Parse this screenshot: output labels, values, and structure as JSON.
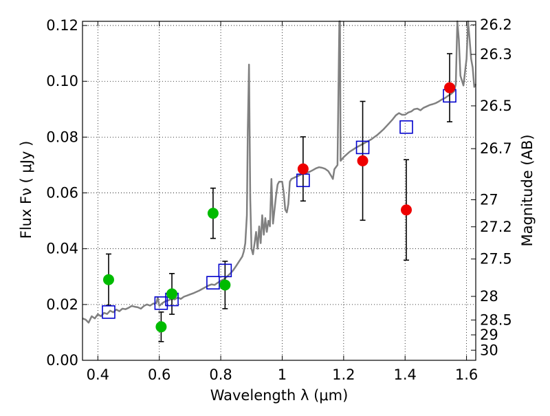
{
  "chart_data": {
    "type": "scatter",
    "xlabel": "Wavelength  λ (μm)",
    "ylabel": "Flux  Fν  ( μJy )",
    "y2label": "Magnitude (AB)",
    "xlim": [
      0.35,
      1.63
    ],
    "ylim": [
      0.0,
      0.1215
    ],
    "grid": true,
    "xticks": [
      {
        "v": 0.4,
        "t": "0.4"
      },
      {
        "v": 0.6,
        "t": "0.6"
      },
      {
        "v": 0.8,
        "t": "0.8"
      },
      {
        "v": 1.0,
        "t": "1"
      },
      {
        "v": 1.2,
        "t": "1.2"
      },
      {
        "v": 1.4,
        "t": "1.4"
      },
      {
        "v": 1.6,
        "t": "1.6"
      }
    ],
    "yticks": [
      {
        "v": 0.0,
        "t": "0.00"
      },
      {
        "v": 0.02,
        "t": "0.02"
      },
      {
        "v": 0.04,
        "t": "0.04"
      },
      {
        "v": 0.06,
        "t": "0.06"
      },
      {
        "v": 0.08,
        "t": "0.08"
      },
      {
        "v": 0.1,
        "t": "0.10"
      },
      {
        "v": 0.12,
        "t": "0.12"
      }
    ],
    "mag_ticks": [
      {
        "v": 26.2,
        "t": "26.2"
      },
      {
        "v": 26.3,
        "t": "26.3"
      },
      {
        "v": 26.5,
        "t": "26.5"
      },
      {
        "v": 26.7,
        "t": "26.7"
      },
      {
        "v": 27,
        "t": "27"
      },
      {
        "v": 27.2,
        "t": "27.2"
      },
      {
        "v": 27.5,
        "t": "27.5"
      },
      {
        "v": 28,
        "t": "28"
      },
      {
        "v": 28.5,
        "t": "28.5"
      },
      {
        "v": 29,
        "t": "29"
      },
      {
        "v": 30,
        "t": "30"
      }
    ],
    "series": [
      {
        "marker": "square",
        "color": "#0000cc",
        "points": [
          {
            "x": 0.435,
            "y": 0.0173
          },
          {
            "x": 0.606,
            "y": 0.0205
          },
          {
            "x": 0.641,
            "y": 0.0218
          },
          {
            "x": 0.775,
            "y": 0.0278
          },
          {
            "x": 0.814,
            "y": 0.0322
          },
          {
            "x": 1.068,
            "y": 0.0645
          },
          {
            "x": 1.262,
            "y": 0.0763
          },
          {
            "x": 1.404,
            "y": 0.0836
          },
          {
            "x": 1.545,
            "y": 0.0948
          }
        ]
      },
      {
        "marker": "circle",
        "color": "#00bb00",
        "points": [
          {
            "x": 0.435,
            "y": 0.0289,
            "err": 0.0092
          },
          {
            "x": 0.606,
            "y": 0.012,
            "err": 0.0053
          },
          {
            "x": 0.641,
            "y": 0.0238,
            "err": 0.0073
          },
          {
            "x": 0.775,
            "y": 0.0527,
            "err": 0.009
          },
          {
            "x": 0.814,
            "y": 0.027,
            "err": 0.0085
          }
        ]
      },
      {
        "marker": "circle",
        "color": "#ee0000",
        "points": [
          {
            "x": 1.068,
            "y": 0.0686,
            "err": 0.0115
          },
          {
            "x": 1.262,
            "y": 0.0715,
            "err": 0.0213
          },
          {
            "x": 1.404,
            "y": 0.0539,
            "err": 0.018
          },
          {
            "x": 1.545,
            "y": 0.0977,
            "err": 0.0122
          }
        ]
      }
    ],
    "model_spectrum": {
      "color": "#808080",
      "points": [
        [
          0.35,
          0.015
        ],
        [
          0.36,
          0.0146
        ],
        [
          0.37,
          0.0135
        ],
        [
          0.38,
          0.0158
        ],
        [
          0.39,
          0.015
        ],
        [
          0.4,
          0.0165
        ],
        [
          0.41,
          0.0158
        ],
        [
          0.42,
          0.017
        ],
        [
          0.43,
          0.0166
        ],
        [
          0.44,
          0.0178
        ],
        [
          0.45,
          0.0172
        ],
        [
          0.46,
          0.0182
        ],
        [
          0.47,
          0.0176
        ],
        [
          0.48,
          0.0185
        ],
        [
          0.49,
          0.0183
        ],
        [
          0.5,
          0.0188
        ],
        [
          0.51,
          0.0195
        ],
        [
          0.52,
          0.0192
        ],
        [
          0.53,
          0.019
        ],
        [
          0.54,
          0.0185
        ],
        [
          0.55,
          0.0195
        ],
        [
          0.56,
          0.02
        ],
        [
          0.57,
          0.0196
        ],
        [
          0.58,
          0.0203
        ],
        [
          0.59,
          0.0205
        ],
        [
          0.595,
          0.0225
        ],
        [
          0.6,
          0.0195
        ],
        [
          0.61,
          0.0205
        ],
        [
          0.62,
          0.0212
        ],
        [
          0.63,
          0.0215
        ],
        [
          0.64,
          0.022
        ],
        [
          0.65,
          0.0218
        ],
        [
          0.66,
          0.0225
        ],
        [
          0.67,
          0.022
        ],
        [
          0.68,
          0.0228
        ],
        [
          0.69,
          0.0232
        ],
        [
          0.7,
          0.0236
        ],
        [
          0.71,
          0.024
        ],
        [
          0.72,
          0.0245
        ],
        [
          0.73,
          0.025
        ],
        [
          0.74,
          0.0256
        ],
        [
          0.75,
          0.0262
        ],
        [
          0.76,
          0.0268
        ],
        [
          0.77,
          0.0272
        ],
        [
          0.78,
          0.027
        ],
        [
          0.79,
          0.0278
        ],
        [
          0.8,
          0.0285
        ],
        [
          0.81,
          0.029
        ],
        [
          0.82,
          0.03
        ],
        [
          0.83,
          0.031
        ],
        [
          0.84,
          0.0322
        ],
        [
          0.85,
          0.0338
        ],
        [
          0.86,
          0.0355
        ],
        [
          0.87,
          0.0372
        ],
        [
          0.875,
          0.039
        ],
        [
          0.88,
          0.042
        ],
        [
          0.885,
          0.052
        ],
        [
          0.888,
          0.082
        ],
        [
          0.892,
          0.106
        ],
        [
          0.896,
          0.058
        ],
        [
          0.9,
          0.04
        ],
        [
          0.905,
          0.038
        ],
        [
          0.91,
          0.042
        ],
        [
          0.915,
          0.046
        ],
        [
          0.92,
          0.04
        ],
        [
          0.925,
          0.048
        ],
        [
          0.93,
          0.042
        ],
        [
          0.935,
          0.052
        ],
        [
          0.94,
          0.045
        ],
        [
          0.945,
          0.051
        ],
        [
          0.95,
          0.046
        ],
        [
          0.955,
          0.05
        ],
        [
          0.96,
          0.048
        ],
        [
          0.965,
          0.065
        ],
        [
          0.97,
          0.049
        ],
        [
          0.975,
          0.054
        ],
        [
          0.98,
          0.059
        ],
        [
          0.985,
          0.063
        ],
        [
          0.99,
          0.064
        ],
        [
          1.0,
          0.064
        ],
        [
          1.005,
          0.06
        ],
        [
          1.01,
          0.054
        ],
        [
          1.015,
          0.053
        ],
        [
          1.02,
          0.056
        ],
        [
          1.025,
          0.064
        ],
        [
          1.03,
          0.065
        ],
        [
          1.04,
          0.0655
        ],
        [
          1.05,
          0.066
        ],
        [
          1.06,
          0.0665
        ],
        [
          1.07,
          0.067
        ],
        [
          1.08,
          0.0672
        ],
        [
          1.09,
          0.0676
        ],
        [
          1.1,
          0.0682
        ],
        [
          1.11,
          0.0688
        ],
        [
          1.12,
          0.0692
        ],
        [
          1.13,
          0.069
        ],
        [
          1.14,
          0.0686
        ],
        [
          1.15,
          0.0678
        ],
        [
          1.16,
          0.066
        ],
        [
          1.165,
          0.065
        ],
        [
          1.17,
          0.0685
        ],
        [
          1.18,
          0.07
        ],
        [
          1.186,
          0.122
        ],
        [
          1.188,
          0.122
        ],
        [
          1.19,
          0.0715
        ],
        [
          1.2,
          0.0728
        ],
        [
          1.21,
          0.0738
        ],
        [
          1.22,
          0.0748
        ],
        [
          1.23,
          0.0755
        ],
        [
          1.24,
          0.0762
        ],
        [
          1.25,
          0.0768
        ],
        [
          1.26,
          0.0774
        ],
        [
          1.27,
          0.078
        ],
        [
          1.28,
          0.0786
        ],
        [
          1.29,
          0.0792
        ],
        [
          1.3,
          0.08
        ],
        [
          1.31,
          0.0808
        ],
        [
          1.32,
          0.0818
        ],
        [
          1.33,
          0.0828
        ],
        [
          1.34,
          0.084
        ],
        [
          1.35,
          0.0852
        ],
        [
          1.36,
          0.0864
        ],
        [
          1.37,
          0.0878
        ],
        [
          1.38,
          0.0886
        ],
        [
          1.39,
          0.088
        ],
        [
          1.4,
          0.088
        ],
        [
          1.41,
          0.0888
        ],
        [
          1.42,
          0.0892
        ],
        [
          1.43,
          0.09
        ],
        [
          1.44,
          0.0902
        ],
        [
          1.45,
          0.0896
        ],
        [
          1.46,
          0.0905
        ],
        [
          1.47,
          0.091
        ],
        [
          1.48,
          0.0915
        ],
        [
          1.49,
          0.0918
        ],
        [
          1.5,
          0.0922
        ],
        [
          1.51,
          0.0928
        ],
        [
          1.52,
          0.0935
        ],
        [
          1.53,
          0.094
        ],
        [
          1.54,
          0.0948
        ],
        [
          1.55,
          0.0955
        ],
        [
          1.56,
          0.0965
        ],
        [
          1.565,
          0.099
        ],
        [
          1.57,
          0.122
        ],
        [
          1.575,
          0.115
        ],
        [
          1.58,
          0.102
        ],
        [
          1.59,
          0.0985
        ],
        [
          1.6,
          0.108
        ],
        [
          1.605,
          0.122
        ],
        [
          1.61,
          0.115
        ],
        [
          1.615,
          0.108
        ],
        [
          1.62,
          0.105
        ],
        [
          1.625,
          0.098
        ],
        [
          1.63,
          0.099
        ]
      ]
    }
  }
}
